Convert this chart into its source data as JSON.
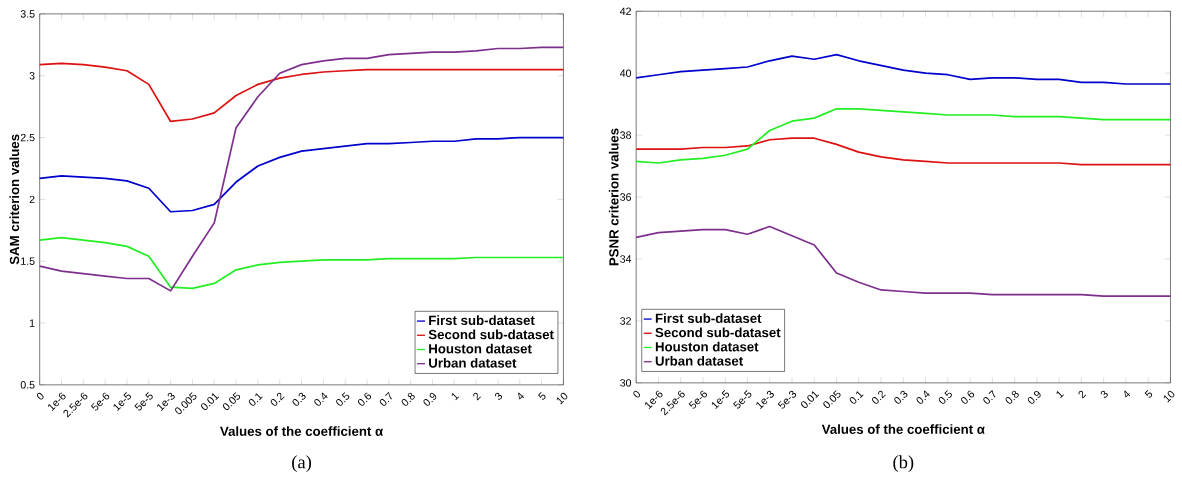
{
  "chart_data": [
    {
      "type": "line",
      "xlabel": "Values of the coefficient α",
      "ylabel": "SAM criterion values",
      "categories": [
        "0",
        "1e-6",
        "2.5e-6",
        "5e-6",
        "1e-5",
        "5e-5",
        "1e-3",
        "0.005",
        "0.01",
        "0.05",
        "0.1",
        "0.2",
        "0.3",
        "0.4",
        "0.5",
        "0.6",
        "0.7",
        "0.8",
        "0.9",
        "1",
        "2",
        "3",
        "4",
        "5",
        "10"
      ],
      "series": [
        {
          "name": "First sub-dataset",
          "color": "#0000cc",
          "values": [
            2.17,
            2.19,
            2.18,
            2.17,
            2.15,
            2.09,
            1.9,
            1.91,
            1.96,
            2.14,
            2.27,
            2.34,
            2.39,
            2.41,
            2.43,
            2.45,
            2.45,
            2.46,
            2.47,
            2.47,
            2.49,
            2.49,
            2.5,
            2.5,
            2.5
          ]
        },
        {
          "name": "Second sub-dataset",
          "color": "#dd1111",
          "values": [
            3.09,
            3.1,
            3.09,
            3.07,
            3.04,
            2.93,
            2.63,
            2.65,
            2.7,
            2.84,
            2.93,
            2.98,
            3.01,
            3.03,
            3.04,
            3.05,
            3.05,
            3.05,
            3.05,
            3.05,
            3.05,
            3.05,
            3.05,
            3.05,
            3.05
          ]
        },
        {
          "name": "Houston dataset",
          "color": "#22ee22",
          "values": [
            1.67,
            1.69,
            1.67,
            1.65,
            1.62,
            1.54,
            1.29,
            1.28,
            1.32,
            1.43,
            1.47,
            1.49,
            1.5,
            1.51,
            1.51,
            1.51,
            1.52,
            1.52,
            1.52,
            1.52,
            1.53,
            1.53,
            1.53,
            1.53,
            1.53
          ]
        },
        {
          "name": "Urban dataset",
          "color": "#7e2f8e",
          "values": [
            1.46,
            1.42,
            1.4,
            1.38,
            1.36,
            1.36,
            1.26,
            1.54,
            1.81,
            2.58,
            2.83,
            3.02,
            3.09,
            3.12,
            3.14,
            3.14,
            3.17,
            3.18,
            3.19,
            3.19,
            3.2,
            3.22,
            3.22,
            3.23,
            3.23
          ]
        }
      ],
      "ylim": [
        0.5,
        3.5
      ],
      "yticks": [
        0.5,
        1,
        1.5,
        2,
        2.5,
        3,
        3.5
      ],
      "legend": "bottom right",
      "annotations": [
        "(a)"
      ]
    },
    {
      "type": "line",
      "xlabel": "Values of the coefficient α",
      "ylabel": "PSNR criterion values",
      "categories": [
        "0",
        "1e-6",
        "2.5e-6",
        "5e-6",
        "1e-5",
        "5e-5",
        "1e-3",
        "5e-3",
        "0.01",
        "0.05",
        "0.1",
        "0.2",
        "0.3",
        "0.4",
        "0.5",
        "0.6",
        "0.7",
        "0.8",
        "0.9",
        "1",
        "2",
        "3",
        "4",
        "5",
        "10"
      ],
      "series": [
        {
          "name": "First sub-dataset",
          "color": "#0000cc",
          "values": [
            39.85,
            39.95,
            40.05,
            40.1,
            40.15,
            40.2,
            40.4,
            40.55,
            40.45,
            40.6,
            40.4,
            40.25,
            40.1,
            40.0,
            39.95,
            39.8,
            39.85,
            39.85,
            39.8,
            39.8,
            39.7,
            39.7,
            39.65,
            39.65,
            39.65
          ]
        },
        {
          "name": "Second sub-dataset",
          "color": "#dd1111",
          "values": [
            37.55,
            37.55,
            37.55,
            37.6,
            37.6,
            37.65,
            37.85,
            37.9,
            37.9,
            37.7,
            37.45,
            37.3,
            37.2,
            37.15,
            37.1,
            37.1,
            37.1,
            37.1,
            37.1,
            37.1,
            37.05,
            37.05,
            37.05,
            37.05,
            37.05
          ]
        },
        {
          "name": "Houston dataset",
          "color": "#22ee22",
          "values": [
            37.15,
            37.1,
            37.2,
            37.25,
            37.35,
            37.55,
            38.15,
            38.45,
            38.55,
            38.85,
            38.85,
            38.8,
            38.75,
            38.7,
            38.65,
            38.65,
            38.65,
            38.6,
            38.6,
            38.6,
            38.55,
            38.5,
            38.5,
            38.5,
            38.5
          ]
        },
        {
          "name": "Urban dataset",
          "color": "#7e2f8e",
          "values": [
            34.7,
            34.85,
            34.9,
            34.95,
            34.95,
            34.8,
            35.05,
            34.75,
            34.45,
            33.55,
            33.25,
            33.0,
            32.95,
            32.9,
            32.9,
            32.9,
            32.85,
            32.85,
            32.85,
            32.85,
            32.85,
            32.8,
            32.8,
            32.8,
            32.8
          ]
        }
      ],
      "ylim": [
        30,
        42
      ],
      "yticks": [
        30,
        32,
        34,
        36,
        38,
        40,
        42
      ],
      "legend": "bottom left",
      "annotations": [
        "(b)"
      ]
    }
  ]
}
